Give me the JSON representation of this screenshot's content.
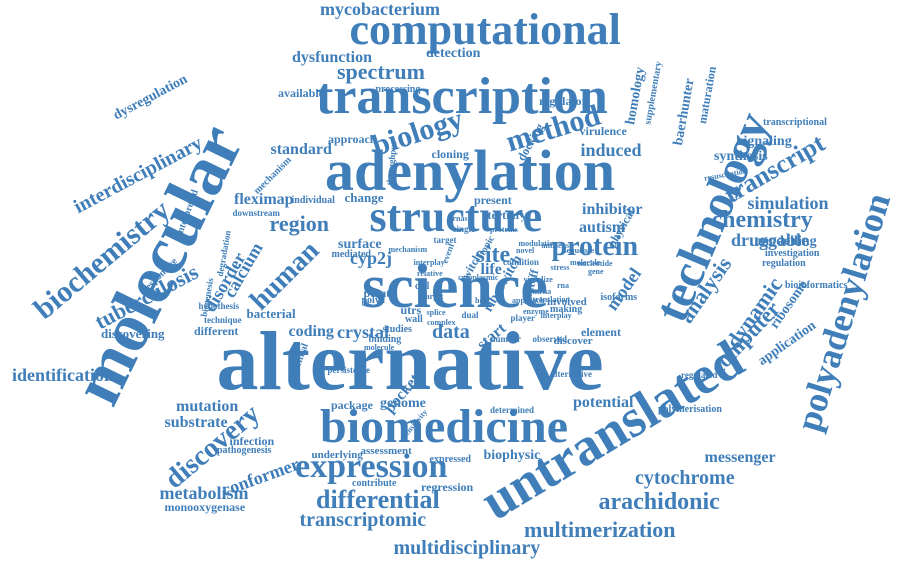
{
  "color": "#3f7eb9",
  "words": [
    "alternative",
    "science",
    "molecular",
    "untranslated",
    "adenylation",
    "transcription",
    "computational",
    "structure",
    "biomedicine",
    "technology",
    "polyadenylation",
    "expression",
    "biochemistry",
    "biology",
    "protein",
    "method",
    "transcript",
    "chemistry",
    "human",
    "tuberculosis",
    "interdisciplinary",
    "differential",
    "arachidonic",
    "multimerization",
    "transcriptomic",
    "multidisciplinary",
    "identification",
    "spectrum",
    "mycobacterium",
    "dysfunction",
    "detection",
    "region",
    "site",
    "analysis",
    "dynamic",
    "computer",
    "simulation",
    "druggable",
    "induced",
    "cytochrome",
    "messenger",
    "metabolism",
    "monooxygenase",
    "conformer",
    "substrate",
    "mutation",
    "discovery",
    "crystal",
    "data",
    "start",
    "pocket",
    "model",
    "genome",
    "package",
    "assessment",
    "contribute",
    "regression",
    "biophysic",
    "potential",
    "regulated",
    "polymerisation",
    "inhibitor",
    "autism",
    "present",
    "tertiary",
    "change",
    "individual",
    "fleximap",
    "downstream",
    "mechanism",
    "interpreted",
    "responsive",
    "bacterial",
    "coding",
    "different",
    "discovering",
    "disorder",
    "calcium",
    "cyp2j",
    "life",
    "mediated",
    "surface",
    "physical",
    "isoforms",
    "involved",
    "making",
    "riboswitch",
    "ribosome",
    "regulation",
    "bioinformatics",
    "application",
    "modelling",
    "investigation",
    "signaling",
    "synthesis",
    "transcriptional",
    "virulence",
    "docking",
    "homology",
    "baerhunter",
    "maturation",
    "supplementary",
    "regulator",
    "cloning",
    "throughput",
    "approach",
    "standard",
    "available",
    "processing",
    "dysregulation",
    "infection",
    "pathogenesis",
    "underlying",
    "expressed",
    "determined",
    "alternative",
    "polya",
    "point",
    "utrs",
    "wall",
    "cell",
    "switch",
    "shutoff",
    "studies",
    "binding",
    "molecule",
    "number",
    "observed",
    "element",
    "discover",
    "essential",
    "persistence",
    "sensitivity",
    "degradation",
    "biogenesis",
    "hypothesis",
    "technique",
    "topic",
    "event",
    "single",
    "target",
    "rnas",
    "condition",
    "visualize",
    "resuscitation",
    "stress",
    "molecule",
    "player",
    "dual",
    "complex",
    "cytoplasmic",
    "splice",
    "mechanism",
    "novel",
    "modulation",
    "nucleotide",
    "gene",
    "rna",
    "mrna",
    "translation",
    "host",
    "interplay",
    "relative",
    "antisense",
    "proteins",
    "sequence",
    "interplay",
    "enzyme",
    "target",
    "approach",
    "design",
    "variant",
    "profile",
    "pathway",
    "control"
  ]
}
